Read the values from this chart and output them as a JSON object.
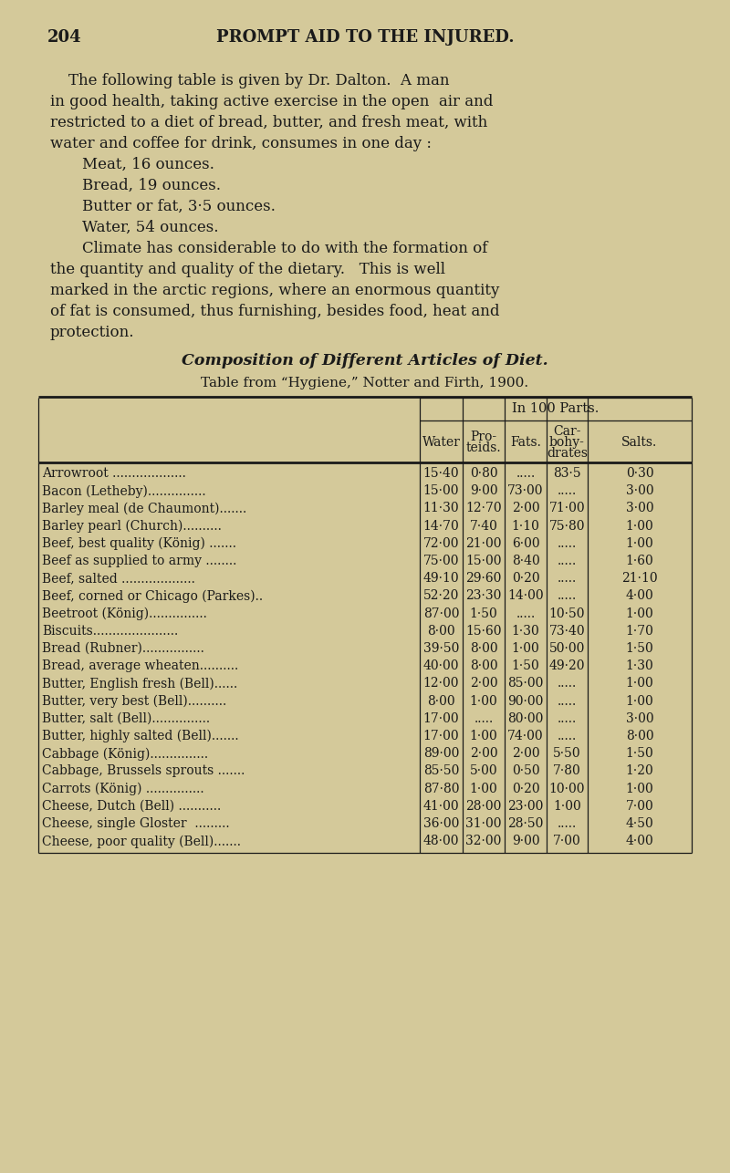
{
  "bg_color": "#d4c99a",
  "text_color": "#1a1a1a",
  "page_number": "204",
  "page_header": "PROMPT AID TO THE INJURED.",
  "intro_line1": "The following table is given by Dr. Dalton.  A man",
  "intro_line2": "in good health, taking active exercise in the open  air and",
  "intro_line3": "restricted to a diet of bread, butter, and fresh meat, with",
  "intro_line4": "water and coffee for drink, consumes in one day :",
  "bullet_items": [
    "Meat, 16 ounces.",
    "Bread, 19 ounces.",
    "Butter or fat, 3·5 ounces.",
    "Water, 54 ounces."
  ],
  "climate_line1": "Climate has considerable to do with the formation of",
  "climate_line2": "the quantity and quality of the dietary.   This is well",
  "climate_line3": "marked in the arctic regions, where an enormous quantity",
  "climate_line4": "of fat is consumed, thus furnishing, besides food, heat and",
  "climate_line5": "protection.",
  "table_title": "Composition of Different Articles of Diet.",
  "table_source": "Table from “Hygiene,” Notter and Firth, 1900.",
  "col_header_group": "In 100 Parts.",
  "col_headers": [
    "Water",
    "Pro-\nteids.",
    "Fats.",
    "Car-\nbohy-\ndrates",
    "Salts."
  ],
  "rows": [
    [
      "Arrowroot ...................",
      "15·40",
      "0·80",
      ".....",
      "83·5",
      "0·30"
    ],
    [
      "Bacon (Letheby)...............",
      "15·00",
      "9·00",
      "73·00",
      ".....",
      "3·00"
    ],
    [
      "Barley meal (de Chaumont).......",
      "11·30",
      "12·70",
      "2·00",
      "71·00",
      "3·00"
    ],
    [
      "Barley pearl (Church)..........",
      "14·70",
      "7·40",
      "1·10",
      "75·80",
      "1·00"
    ],
    [
      "Beef, best quality (König) .......",
      "72·00",
      "21·00",
      "6·00",
      ".....",
      "1·00"
    ],
    [
      "Beef as supplied to army ........",
      "75·00",
      "15·00",
      "8·40",
      ".....",
      "1·60"
    ],
    [
      "Beef, salted ...................",
      "49·10",
      "29·60",
      "0·20",
      ".....",
      "21·10"
    ],
    [
      "Beef, corned or Chicago (Parkes)..",
      "52·20",
      "23·30",
      "14·00",
      ".....",
      "4·00"
    ],
    [
      "Beetroot (König)...............",
      "87·00",
      "1·50",
      ".....",
      "10·50",
      "1·00"
    ],
    [
      "Biscuits......................",
      "8·00",
      "15·60",
      "1·30",
      "73·40",
      "1·70"
    ],
    [
      "Bread (Rubner)................",
      "39·50",
      "8·00",
      "1·00",
      "50·00",
      "1·50"
    ],
    [
      "Bread, average wheaten..........",
      "40·00",
      "8·00",
      "1·50",
      "49·20",
      "1·30"
    ],
    [
      "Butter, English fresh (Bell)......",
      "12·00",
      "2·00",
      "85·00",
      ".....",
      "1·00"
    ],
    [
      "Butter, very best (Bell)..........",
      "8·00",
      "1·00",
      "90·00",
      ".....",
      "1·00"
    ],
    [
      "Butter, salt (Bell)...............",
      "17·00",
      ".....",
      "80·00",
      ".....",
      "3·00"
    ],
    [
      "Butter, highly salted (Bell).......",
      "17·00",
      "1·00",
      "74·00",
      ".....",
      "8·00"
    ],
    [
      "Cabbage (König)...............",
      "89·00",
      "2·00",
      "2·00",
      "5·50",
      "1·50"
    ],
    [
      "Cabbage, Brussels sprouts .......",
      "85·50",
      "5·00",
      "0·50",
      "7·80",
      "1·20"
    ],
    [
      "Carrots (König) ...............",
      "87·80",
      "1·00",
      "0·20",
      "10·00",
      "1·00"
    ],
    [
      "Cheese, Dutch (Bell) ...........",
      "41·00",
      "28·00",
      "23·00",
      "1·00",
      "7·00"
    ],
    [
      "Cheese, single Gloster  .........",
      "36·00",
      "31·00",
      "28·50",
      ".....",
      "4·50"
    ],
    [
      "Cheese, poor quality (Bell).......",
      "48·00",
      "32·00",
      "9·00",
      "7·00",
      "4·00"
    ]
  ],
  "figwidth": 8.0,
  "figheight": 12.86,
  "dpi": 100
}
